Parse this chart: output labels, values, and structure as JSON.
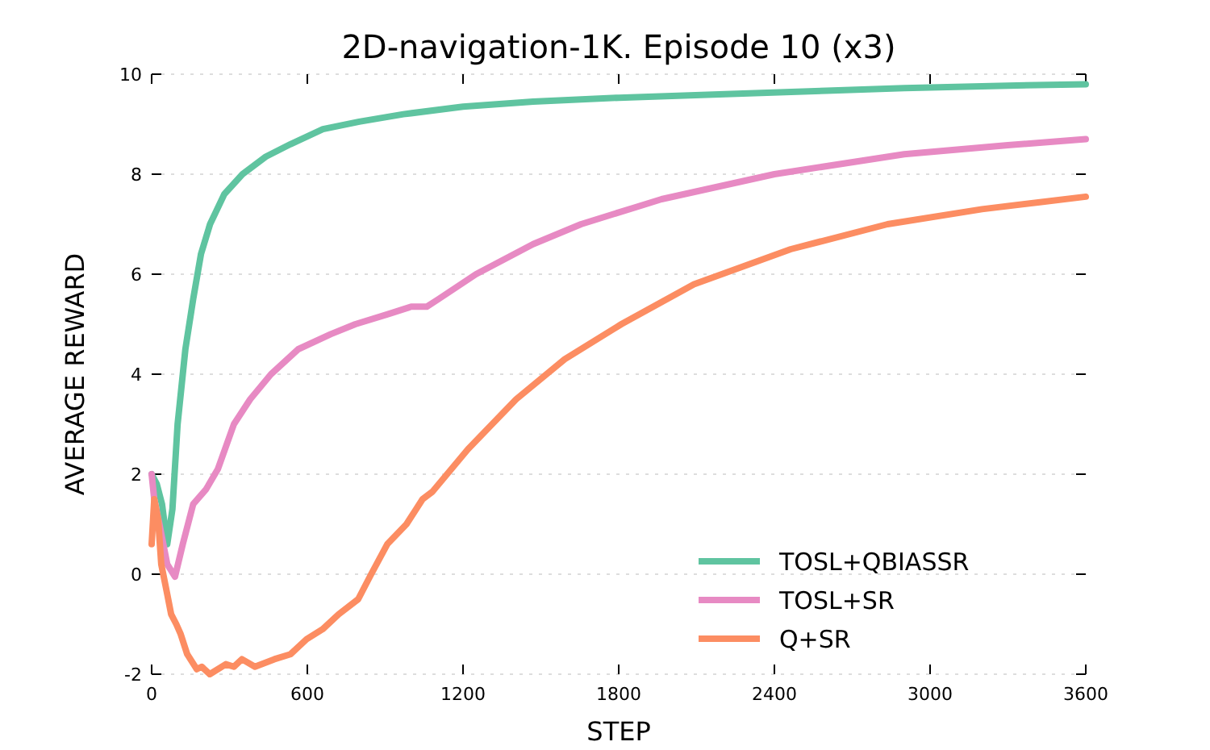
{
  "chart_data": {
    "type": "line",
    "title": "2D-navigation-1K. Episode 10 (x3)",
    "xlabel": "STEP",
    "ylabel": "AVERAGE REWARD",
    "xlim": [
      0,
      3600
    ],
    "xticks": [
      0,
      600,
      1200,
      1800,
      2400,
      3000,
      3600
    ],
    "ylim": [
      -2,
      10
    ],
    "yticks": [
      -2,
      0,
      2,
      4,
      6,
      8,
      10
    ],
    "grid": "y",
    "legend": "bottom right",
    "marker": "none",
    "line_style": "solid",
    "series": [
      {
        "name": "TOSL+QBIASSR",
        "color": "#5fc4a0",
        "x": [
          0,
          20,
          40,
          60,
          80,
          100,
          130,
          160,
          190,
          225,
          280,
          350,
          440,
          535,
          660,
          800,
          970,
          1200,
          1470,
          1800,
          2210,
          2600,
          2900,
          3300,
          3600
        ],
        "values": [
          2,
          1.8,
          1.4,
          0.6,
          1.3,
          3,
          4.5,
          5.5,
          6.4,
          7,
          7.6,
          8,
          8.35,
          8.6,
          8.9,
          9.05,
          9.2,
          9.35,
          9.45,
          9.53,
          9.6,
          9.67,
          9.72,
          9.77,
          9.8
        ]
      },
      {
        "name": "TOSL+SR",
        "color": "#e78ac3",
        "x": [
          0,
          10,
          30,
          60,
          90,
          120,
          160,
          210,
          255,
          317,
          380,
          460,
          565,
          690,
          785,
          910,
          1000,
          1060,
          1105,
          1250,
          1470,
          1655,
          1965,
          2400,
          2900,
          3300,
          3600
        ],
        "values": [
          2,
          1.5,
          1,
          0.2,
          -0.05,
          0.6,
          1.4,
          1.7,
          2.1,
          3,
          3.5,
          4,
          4.5,
          4.8,
          5,
          5.2,
          5.35,
          5.35,
          5.5,
          6,
          6.6,
          7,
          7.5,
          8,
          8.4,
          8.58,
          8.7
        ]
      },
      {
        "name": "Q+SR",
        "color": "#fc8d62",
        "x": [
          0,
          10,
          25,
          37,
          60,
          75,
          95,
          112,
          137,
          174,
          193,
          224,
          286,
          317,
          348,
          398,
          473,
          535,
          597,
          659,
          721,
          796,
          846,
          908,
          982,
          1044,
          1082,
          1219,
          1405,
          1592,
          1810,
          2090,
          2463,
          2836,
          3200,
          3600
        ],
        "values": [
          0.6,
          1.5,
          1.1,
          0.2,
          -0.4,
          -0.8,
          -1,
          -1.2,
          -1.6,
          -1.9,
          -1.85,
          -2,
          -1.8,
          -1.85,
          -1.7,
          -1.85,
          -1.7,
          -1.6,
          -1.3,
          -1.1,
          -0.8,
          -0.5,
          0,
          0.6,
          1,
          1.5,
          1.65,
          2.5,
          3.5,
          4.3,
          5,
          5.8,
          6.5,
          7,
          7.3,
          7.55
        ]
      }
    ]
  }
}
